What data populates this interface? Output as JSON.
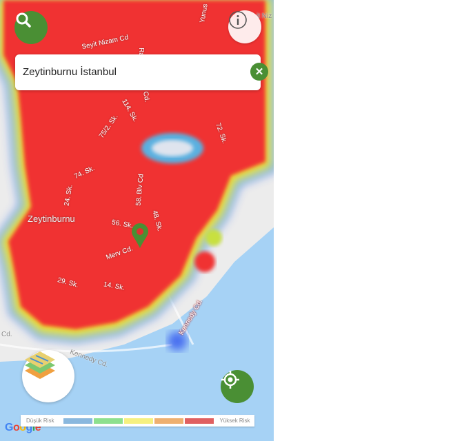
{
  "search": {
    "value": "Zeytinburnu İstanbul",
    "clear_icon": "close-icon"
  },
  "buttons": {
    "search_icon": "search-icon",
    "info_icon": "info-icon",
    "layers_icon": "map-layers-icon",
    "locate_icon": "my-location-icon"
  },
  "map": {
    "district_label": "Zeytinburnu",
    "streets": [
      "Seyit Nizam Cd",
      "Yunus",
      "it Niz",
      "Ra",
      "Cd.",
      "114. Sk.",
      "75/2. Sk.",
      "72. Sk.",
      "74. Sk.",
      "24. Sk.",
      "58. Blv Cd",
      "48. Sk.",
      "56. Sk.",
      "Merv Cd.",
      "29. Sk.",
      "14. Sk.",
      "Kennedy Cd.",
      "Kennedy Cd.",
      "Cd."
    ],
    "marker_color": "#4a8f34"
  },
  "legend": {
    "low_label": "Düşük Risk",
    "high_label": "Yüksek Risk",
    "colors": [
      "#8ab8de",
      "#8ee08e",
      "#f6f080",
      "#eeb070",
      "#e06060"
    ]
  },
  "attribution": "Google",
  "colors": {
    "accent": "#4a8f34",
    "heat_high": "#f03232",
    "water": "#a6d2f5"
  }
}
